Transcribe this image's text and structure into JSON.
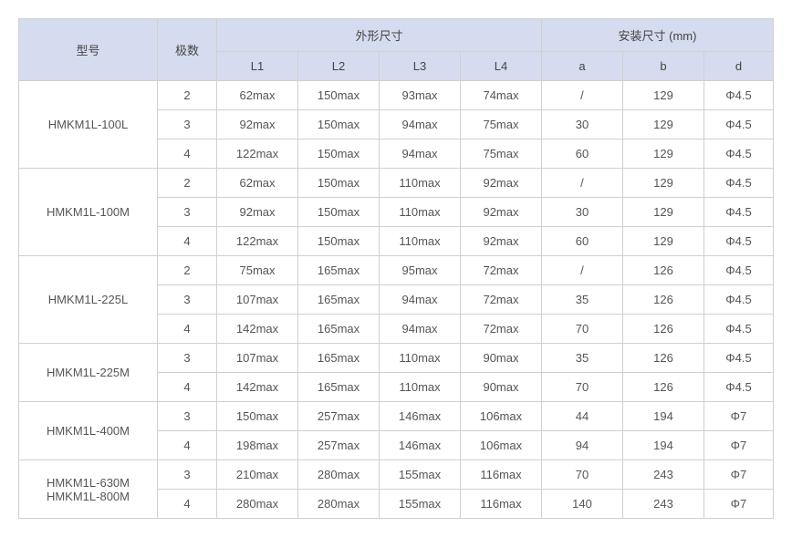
{
  "headers": {
    "model": "型号",
    "poles": "极数",
    "outer_dim": "外形尺寸",
    "install_dim": "安装尺寸 (mm)",
    "L1": "L1",
    "L2": "L2",
    "L3": "L3",
    "L4": "L4",
    "a": "a",
    "b": "b",
    "d": "d"
  },
  "models": [
    {
      "name": "HMKM1L-100L",
      "rows": [
        {
          "pole": "2",
          "L1": "62max",
          "L2": "150max",
          "L3": "93max",
          "L4": "74max",
          "a": "/",
          "b": "129",
          "d": "Φ4.5"
        },
        {
          "pole": "3",
          "L1": "92max",
          "L2": "150max",
          "L3": "94max",
          "L4": "75max",
          "a": "30",
          "b": "129",
          "d": "Φ4.5"
        },
        {
          "pole": "4",
          "L1": "122max",
          "L2": "150max",
          "L3": "94max",
          "L4": "75max",
          "a": "60",
          "b": "129",
          "d": "Φ4.5"
        }
      ]
    },
    {
      "name": "HMKM1L-100M",
      "rows": [
        {
          "pole": "2",
          "L1": "62max",
          "L2": "150max",
          "L3": "110max",
          "L4": "92max",
          "a": "/",
          "b": "129",
          "d": "Φ4.5"
        },
        {
          "pole": "3",
          "L1": "92max",
          "L2": "150max",
          "L3": "110max",
          "L4": "92max",
          "a": "30",
          "b": "129",
          "d": "Φ4.5"
        },
        {
          "pole": "4",
          "L1": "122max",
          "L2": "150max",
          "L3": "110max",
          "L4": "92max",
          "a": "60",
          "b": "129",
          "d": "Φ4.5"
        }
      ]
    },
    {
      "name": "HMKM1L-225L",
      "rows": [
        {
          "pole": "2",
          "L1": "75max",
          "L2": "165max",
          "L3": "95max",
          "L4": "72max",
          "a": "/",
          "b": "126",
          "d": "Φ4.5"
        },
        {
          "pole": "3",
          "L1": "107max",
          "L2": "165max",
          "L3": "94max",
          "L4": "72max",
          "a": "35",
          "b": "126",
          "d": "Φ4.5"
        },
        {
          "pole": "4",
          "L1": "142max",
          "L2": "165max",
          "L3": "94max",
          "L4": "72max",
          "a": "70",
          "b": "126",
          "d": "Φ4.5"
        }
      ]
    },
    {
      "name": "HMKM1L-225M",
      "rows": [
        {
          "pole": "3",
          "L1": "107max",
          "L2": "165max",
          "L3": "110max",
          "L4": "90max",
          "a": "35",
          "b": "126",
          "d": "Φ4.5"
        },
        {
          "pole": "4",
          "L1": "142max",
          "L2": "165max",
          "L3": "110max",
          "L4": "90max",
          "a": "70",
          "b": "126",
          "d": "Φ4.5"
        }
      ]
    },
    {
      "name": "HMKM1L-400M",
      "rows": [
        {
          "pole": "3",
          "L1": "150max",
          "L2": "257max",
          "L3": "146max",
          "L4": "106max",
          "a": "44",
          "b": "194",
          "d": "Φ7"
        },
        {
          "pole": "4",
          "L1": "198max",
          "L2": "257max",
          "L3": "146max",
          "L4": "106max",
          "a": "94",
          "b": "194",
          "d": "Φ7"
        }
      ]
    },
    {
      "name": "HMKM1L-630M\nHMKM1L-800M",
      "rows": [
        {
          "pole": "3",
          "L1": "210max",
          "L2": "280max",
          "L3": "155max",
          "L4": "116max",
          "a": "70",
          "b": "243",
          "d": "Φ7"
        },
        {
          "pole": "4",
          "L1": "280max",
          "L2": "280max",
          "L3": "155max",
          "L4": "116max",
          "a": "140",
          "b": "243",
          "d": "Φ7"
        }
      ]
    }
  ],
  "styling": {
    "header_bg": "#d6dcef",
    "border_color": "#d0d0d0",
    "text_color": "#555",
    "font_size": 13
  }
}
